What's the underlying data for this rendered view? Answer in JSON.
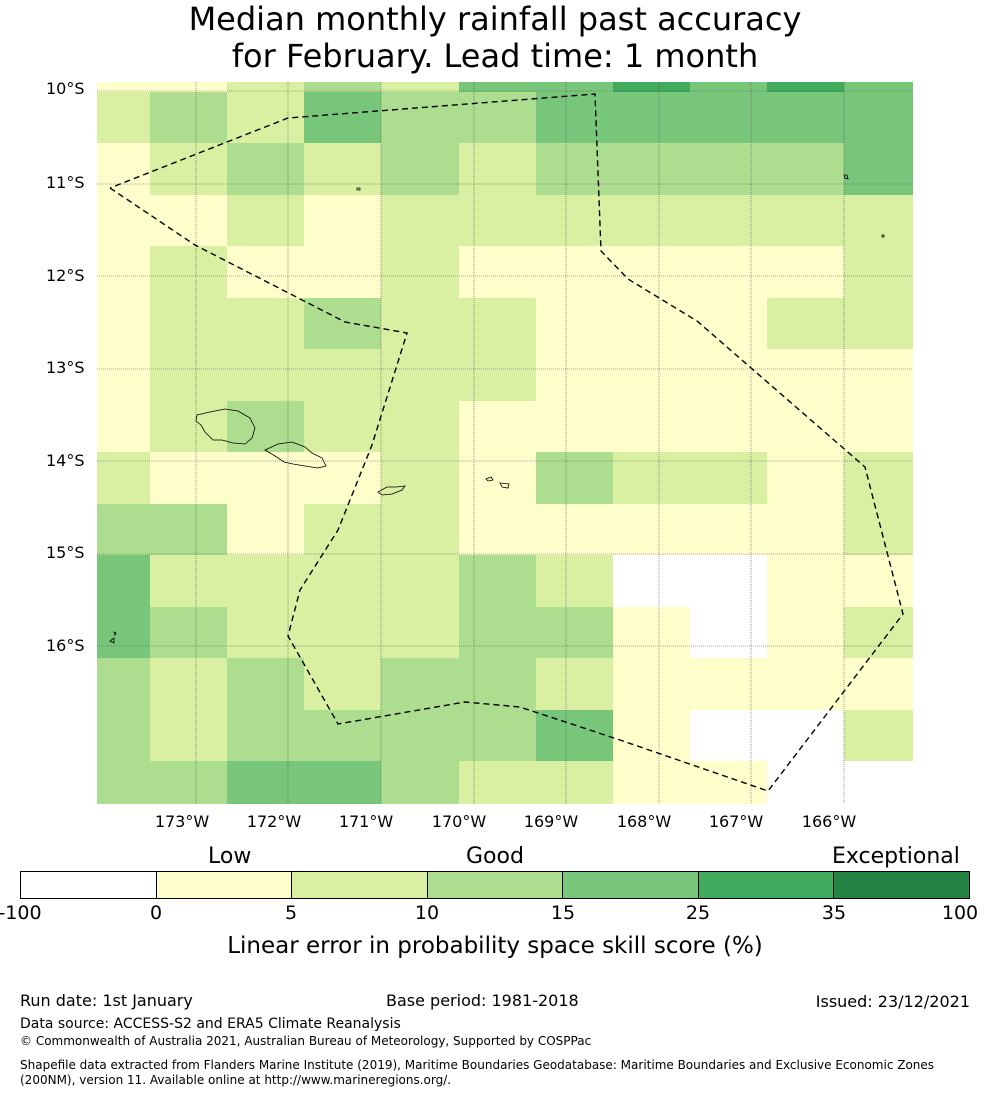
{
  "title": {
    "line1": "Median monthly rainfall past accuracy",
    "line2": "for February. Lead time: 1 month"
  },
  "map": {
    "lat_labels": [
      "10°S",
      "11°S",
      "12°S",
      "13°S",
      "14°S",
      "15°S",
      "16°S"
    ],
    "lon_labels": [
      "173°W",
      "172°W",
      "171°W",
      "170°W",
      "169°W",
      "168°W",
      "167°W",
      "166°W"
    ],
    "skill_grid_classes": [
      [
        1,
        1,
        2,
        3,
        2,
        4,
        4,
        5,
        4,
        5,
        4
      ],
      [
        2,
        3,
        2,
        4,
        3,
        3,
        4,
        4,
        4,
        4,
        4
      ],
      [
        1,
        2,
        3,
        2,
        3,
        2,
        3,
        3,
        3,
        3,
        4
      ],
      [
        1,
        1,
        2,
        1,
        2,
        2,
        2,
        2,
        2,
        2,
        2
      ],
      [
        1,
        2,
        1,
        1,
        2,
        1,
        1,
        1,
        1,
        1,
        2
      ],
      [
        1,
        2,
        2,
        3,
        2,
        2,
        1,
        1,
        1,
        2,
        2
      ],
      [
        1,
        2,
        2,
        2,
        2,
        2,
        1,
        1,
        1,
        1,
        1
      ],
      [
        1,
        2,
        3,
        2,
        2,
        1,
        1,
        1,
        1,
        1,
        1
      ],
      [
        2,
        1,
        1,
        1,
        2,
        1,
        3,
        2,
        2,
        1,
        2
      ],
      [
        3,
        3,
        1,
        2,
        2,
        1,
        1,
        1,
        1,
        1,
        2
      ],
      [
        4,
        2,
        2,
        2,
        2,
        3,
        2,
        0,
        0,
        1,
        1
      ],
      [
        4,
        3,
        2,
        2,
        2,
        3,
        3,
        1,
        0,
        1,
        2
      ],
      [
        3,
        2,
        3,
        2,
        3,
        3,
        2,
        1,
        1,
        1,
        1
      ],
      [
        3,
        2,
        3,
        3,
        3,
        3,
        4,
        1,
        0,
        0,
        2
      ],
      [
        3,
        3,
        4,
        4,
        3,
        2,
        2,
        1,
        1,
        0,
        0
      ]
    ],
    "land_labels": []
  },
  "legend": {
    "category_labels": [
      "Low",
      "Good",
      "Exceptional"
    ],
    "tick_labels": [
      "-100",
      "0",
      "5",
      "10",
      "15",
      "25",
      "35",
      "100"
    ],
    "bounds": [
      -100,
      0,
      5,
      10,
      15,
      25,
      35,
      100
    ],
    "colors": [
      "#ffffff",
      "#ffffcc",
      "#d9f0a3",
      "#addd8e",
      "#78c679",
      "#41ab5d",
      "#238443"
    ],
    "axis_label": "Linear error in probability space skill score (%)"
  },
  "footer": {
    "run_date": "Run date: 1st January",
    "base_period": "Base period: 1981-2018",
    "issued": "Issued: 23/12/2021",
    "data_source": "Data source: ACCESS-S2 and ERA5 Climate Reanalysis",
    "copyright": "© Commonwealth of Australia 2021, Australian Bureau of Meteorology, Supported by COSPPac",
    "shapefile_line1": "Shapefile data extracted from Flanders Marine Institute (2019), Maritime Boundaries Geodatabase: Maritime Boundaries and Exclusive Economic Zones",
    "shapefile_line2": "(200NM), version 11. Available online at http://www.marineregions.org/."
  }
}
